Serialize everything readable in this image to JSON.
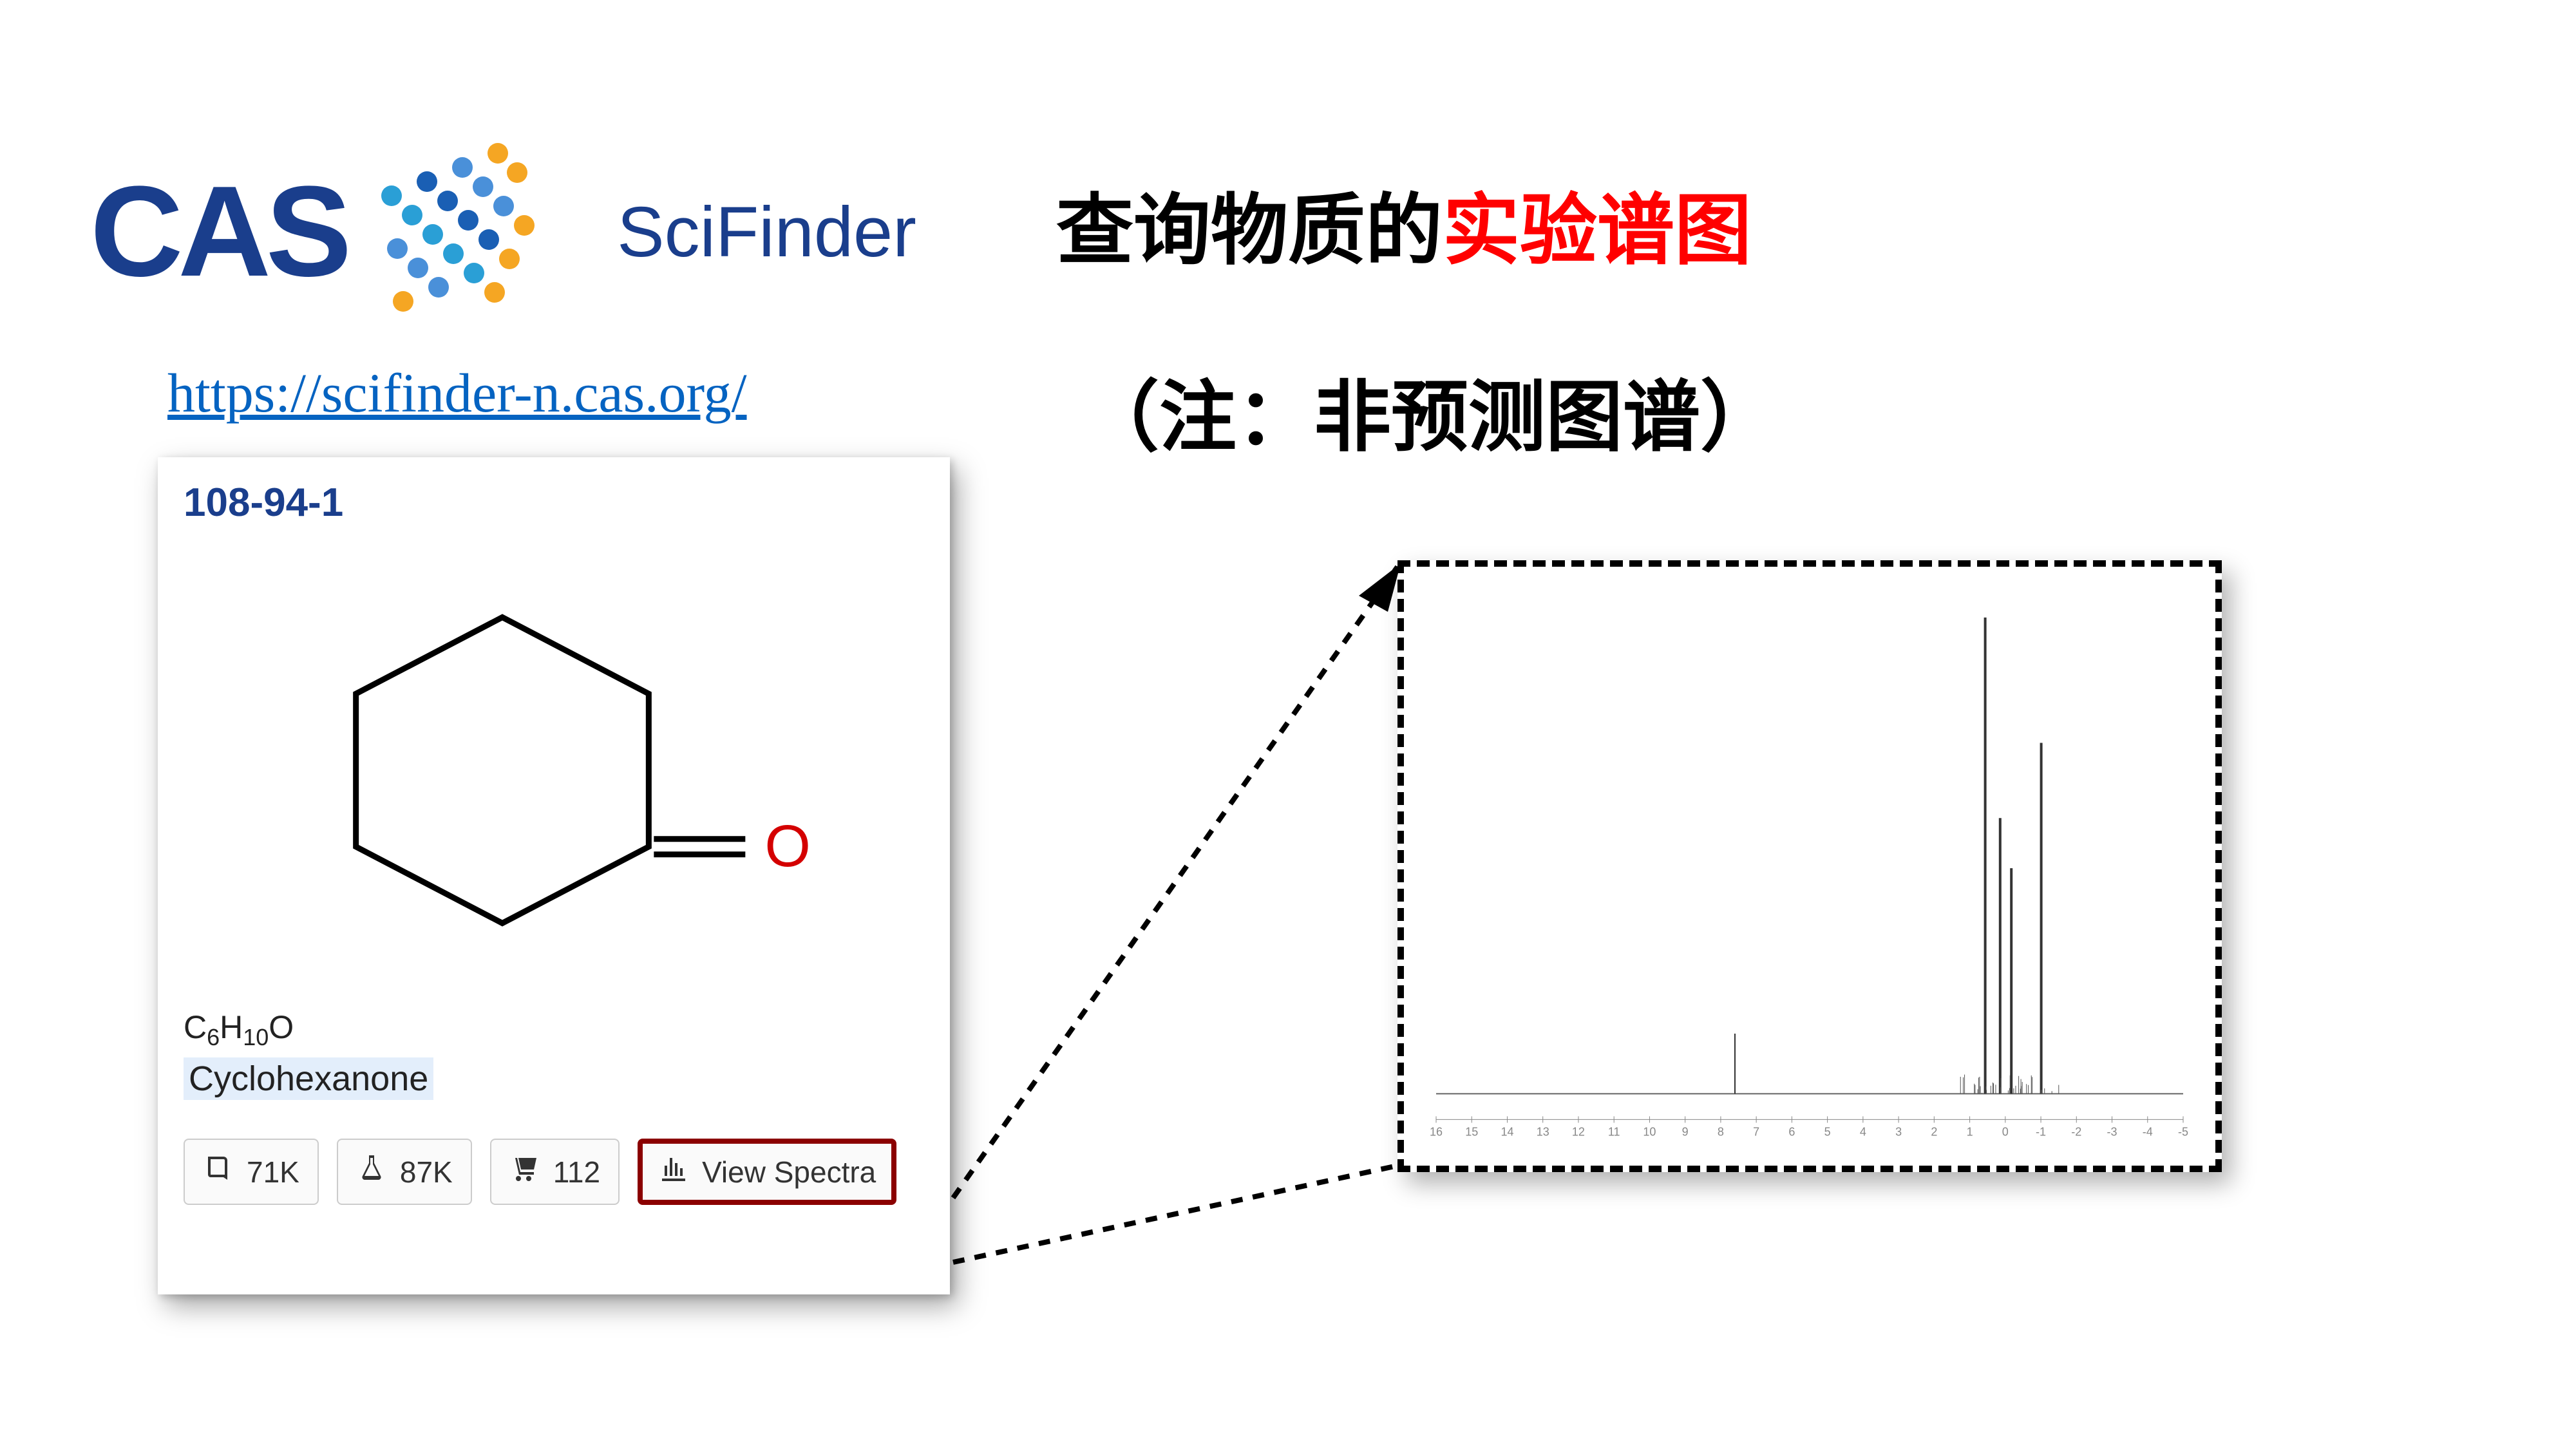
{
  "logo": {
    "cas_text": "CAS",
    "product_text": "SciFinder",
    "cas_color": "#1a3e8c",
    "dot_colors": {
      "orange": "#f5a623",
      "midblue": "#4a90d9",
      "darkblue": "#1a5fb4",
      "teal": "#2a9fd6"
    }
  },
  "url": "https://scifinder-n.cas.org/",
  "title": {
    "prefix": "查询物质的",
    "highlight": "实验谱图",
    "highlight_color": "#ff0000"
  },
  "note_text": "（注：非预测图谱）",
  "substance": {
    "cas_number": "108-94-1",
    "formula_parts": [
      "C",
      "6",
      "H",
      "10",
      "O"
    ],
    "name": "Cyclohexanone",
    "name_highlight_bg": "#e3eefb",
    "structure": {
      "hex_color": "#000000",
      "stroke_width": 9,
      "o_color": "#d40000",
      "o_label": "O"
    },
    "buttons": [
      {
        "icon": "book",
        "label": "71K"
      },
      {
        "icon": "flask",
        "label": "87K"
      },
      {
        "icon": "cart",
        "label": "112"
      },
      {
        "icon": "spectra",
        "label": "View Spectra",
        "highlighted": true
      }
    ]
  },
  "spectrum": {
    "baseline_y": 0.88,
    "baseline_color": "#666666",
    "peaks": [
      {
        "x": 0.4,
        "h": 0.12,
        "w": 1
      },
      {
        "x": 0.735,
        "h": 0.95,
        "w": 2
      },
      {
        "x": 0.755,
        "h": 0.55,
        "w": 2
      },
      {
        "x": 0.77,
        "h": 0.45,
        "w": 2
      },
      {
        "x": 0.81,
        "h": 0.7,
        "w": 2
      }
    ],
    "axis": {
      "min": -5,
      "max": 16,
      "step": 1,
      "font_size": 18,
      "color": "#888888"
    }
  },
  "callout": {
    "stroke": "#000000",
    "dash": "18,16",
    "width": 8
  }
}
